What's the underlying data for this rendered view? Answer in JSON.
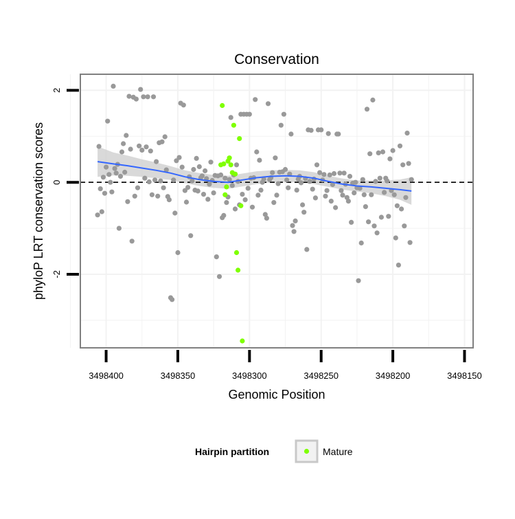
{
  "chart_data": {
    "type": "scatter",
    "title": "Conservation",
    "xlabel": "Genomic Position",
    "ylabel": "phyloP LRT conservation scores",
    "x_reversed": true,
    "xlim": [
      3498418,
      3498144
    ],
    "ylim": [
      -3.6,
      2.35
    ],
    "xticks": [
      3498400,
      3498350,
      3498300,
      3498250,
      3498200,
      3498150
    ],
    "xtick_labels": [
      "3498400",
      "3498350",
      "3498300",
      "3498250",
      "3498200",
      "3498150"
    ],
    "yticks": [
      2,
      0,
      -2
    ],
    "ytick_labels": [
      "2",
      "0",
      "-2"
    ],
    "grid": true,
    "reference_line": {
      "y": 0,
      "style": "dashed",
      "color": "#000000"
    },
    "legend": {
      "title": "Hairpin partition",
      "position": "bottom",
      "entries": [
        {
          "name": "Mature",
          "color": "#7fff00"
        }
      ]
    },
    "colors": {
      "other": "#999999",
      "mature": "#7fff00",
      "smooth": "#3366ff",
      "band": "#cccccc",
      "panel_border": "#808080",
      "grid": "#f2f2f2"
    },
    "series": [
      {
        "name": "",
        "color": "#999999",
        "points": [
          [
            3498406,
            -0.71
          ],
          [
            3498405,
            0.78
          ],
          [
            3498404,
            -0.14
          ],
          [
            3498403,
            -0.64
          ],
          [
            3498402,
            0.11
          ],
          [
            3498401,
            -0.24
          ],
          [
            3498400,
            0.33
          ],
          [
            3498399,
            1.33
          ],
          [
            3498398,
            0.17
          ],
          [
            3498397,
            0.0
          ],
          [
            3498396,
            -0.21
          ],
          [
            3498395,
            2.09
          ],
          [
            3498394,
            0.3
          ],
          [
            3498393,
            0.2
          ],
          [
            3498392,
            0.39
          ],
          [
            3498391,
            -1.0
          ],
          [
            3498390,
            0.13
          ],
          [
            3498389,
            0.66
          ],
          [
            3498388,
            0.84
          ],
          [
            3498387,
            0.22
          ],
          [
            3498386,
            1.02
          ],
          [
            3498385,
            -0.42
          ],
          [
            3498384,
            1.87
          ],
          [
            3498383,
            0.72
          ],
          [
            3498382,
            -1.28
          ],
          [
            3498381,
            1.85
          ],
          [
            3498380,
            -0.3
          ],
          [
            3498379,
            1.81
          ],
          [
            3498378,
            -0.12
          ],
          [
            3498377,
            0.79
          ],
          [
            3498376,
            2.02
          ],
          [
            3498375,
            0.7
          ],
          [
            3498374,
            1.86
          ],
          [
            3498373,
            0.09
          ],
          [
            3498372,
            0.77
          ],
          [
            3498371,
            1.86
          ],
          [
            3498370,
            0.01
          ],
          [
            3498369,
            0.68
          ],
          [
            3498368,
            -0.27
          ],
          [
            3498367,
            1.86
          ],
          [
            3498366,
            0.05
          ],
          [
            3498365,
            0.45
          ],
          [
            3498364,
            -0.3
          ],
          [
            3498363,
            0.86
          ],
          [
            3498362,
            0.03
          ],
          [
            3498361,
            0.88
          ],
          [
            3498360,
            -0.12
          ],
          [
            3498359,
            0.99
          ],
          [
            3498358,
            0.27
          ],
          [
            3498357,
            -0.31
          ],
          [
            3498356,
            -0.38
          ],
          [
            3498355,
            -2.51
          ],
          [
            3498354,
            -2.55
          ],
          [
            3498353,
            0.05
          ],
          [
            3498352,
            -0.67
          ],
          [
            3498351,
            0.47
          ],
          [
            3498350,
            -1.53
          ],
          [
            3498349,
            0.54
          ],
          [
            3498348,
            1.72
          ],
          [
            3498347,
            0.33
          ],
          [
            3498346,
            1.68
          ],
          [
            3498345,
            -0.18
          ],
          [
            3498344,
            -0.43
          ],
          [
            3498343,
            -0.11
          ],
          [
            3498342,
            0.12
          ],
          [
            3498341,
            -1.16
          ],
          [
            3498340,
            0.03
          ],
          [
            3498339,
            0.28
          ],
          [
            3498338,
            -0.17
          ],
          [
            3498337,
            0.52
          ],
          [
            3498336,
            -0.19
          ],
          [
            3498335,
            0.34
          ],
          [
            3498334,
            0.1
          ],
          [
            3498333,
            0.14
          ],
          [
            3498332,
            -0.26
          ],
          [
            3498331,
            0.25
          ],
          [
            3498330,
            0.08
          ],
          [
            3498329,
            -0.37
          ],
          [
            3498328,
            -0.04
          ],
          [
            3498327,
            0.44
          ],
          [
            3498326,
            0.04
          ],
          [
            3498325,
            -0.23
          ],
          [
            3498324,
            0.15
          ],
          [
            3498323,
            -1.62
          ],
          [
            3498322,
            0.14
          ],
          [
            3498321,
            -2.05
          ],
          [
            3498320,
            0.16
          ],
          [
            3498319,
            -0.77
          ],
          [
            3498318,
            -0.72
          ],
          [
            3498317,
            0.09
          ],
          [
            3498316,
            -0.44
          ],
          [
            3498315,
            -0.32
          ],
          [
            3498314,
            0.06
          ],
          [
            3498313,
            1.41
          ],
          [
            3498312,
            -0.07
          ],
          [
            3498311,
            0.16
          ],
          [
            3498310,
            -0.58
          ],
          [
            3498309,
            0.38
          ],
          [
            3498308,
            0.02
          ],
          [
            3498307,
            -0.49
          ],
          [
            3498306,
            1.48
          ],
          [
            3498305,
            -0.26
          ],
          [
            3498304,
            1.48
          ],
          [
            3498303,
            -0.38
          ],
          [
            3498302,
            1.48
          ],
          [
            3498301,
            -0.13
          ],
          [
            3498300,
            1.48
          ],
          [
            3498299,
            0.09
          ],
          [
            3498298,
            -0.54
          ],
          [
            3498297,
            0.1
          ],
          [
            3498296,
            1.8
          ],
          [
            3498295,
            0.66
          ],
          [
            3498294,
            -0.28
          ],
          [
            3498293,
            0.48
          ],
          [
            3498292,
            -0.17
          ],
          [
            3498291,
            0.0
          ],
          [
            3498290,
            0.07
          ],
          [
            3498289,
            -0.7
          ],
          [
            3498288,
            -0.78
          ],
          [
            3498287,
            1.71
          ],
          [
            3498286,
            0.06
          ],
          [
            3498285,
            0.1
          ],
          [
            3498284,
            0.21
          ],
          [
            3498283,
            -0.44
          ],
          [
            3498282,
            0.53
          ],
          [
            3498281,
            -0.28
          ],
          [
            3498280,
            -0.03
          ],
          [
            3498279,
            0.22
          ],
          [
            3498278,
            1.24
          ],
          [
            3498277,
            0.23
          ],
          [
            3498276,
            1.48
          ],
          [
            3498275,
            0.28
          ],
          [
            3498274,
            0.05
          ],
          [
            3498273,
            -0.12
          ],
          [
            3498272,
            0.18
          ],
          [
            3498271,
            1.05
          ],
          [
            3498270,
            -0.94
          ],
          [
            3498269,
            -1.07
          ],
          [
            3498268,
            -0.84
          ],
          [
            3498267,
            -0.17
          ],
          [
            3498266,
            0.07
          ],
          [
            3498265,
            0.13
          ],
          [
            3498264,
            -0.01
          ],
          [
            3498263,
            -0.49
          ],
          [
            3498262,
            -0.65
          ],
          [
            3498261,
            0.08
          ],
          [
            3498260,
            -1.46
          ],
          [
            3498259,
            1.14
          ],
          [
            3498258,
            0.02
          ],
          [
            3498257,
            1.13
          ],
          [
            3498256,
            -0.15
          ],
          [
            3498255,
            0.07
          ],
          [
            3498254,
            -0.34
          ],
          [
            3498253,
            0.38
          ],
          [
            3498252,
            1.14
          ],
          [
            3498251,
            0.21
          ],
          [
            3498250,
            1.14
          ],
          [
            3498249,
            0.05
          ],
          [
            3498248,
            0.17
          ],
          [
            3498247,
            -0.3
          ],
          [
            3498246,
            -0.18
          ],
          [
            3498245,
            1.06
          ],
          [
            3498244,
            0.16
          ],
          [
            3498243,
            -0.41
          ],
          [
            3498242,
            -0.05
          ],
          [
            3498241,
            0.19
          ],
          [
            3498240,
            -0.55
          ],
          [
            3498239,
            1.05
          ],
          [
            3498238,
            1.05
          ],
          [
            3498237,
            0.2
          ],
          [
            3498236,
            -0.18
          ],
          [
            3498235,
            -0.28
          ],
          [
            3498234,
            0.2
          ],
          [
            3498233,
            -0.04
          ],
          [
            3498232,
            -0.33
          ],
          [
            3498231,
            -0.41
          ],
          [
            3498230,
            0.13
          ],
          [
            3498229,
            -0.87
          ],
          [
            3498228,
            -0.02
          ],
          [
            3498227,
            -0.23
          ],
          [
            3498226,
            0.0
          ],
          [
            3498225,
            -0.12
          ],
          [
            3498224,
            -2.14
          ],
          [
            3498223,
            -0.13
          ],
          [
            3498222,
            -1.32
          ],
          [
            3498221,
            0.06
          ],
          [
            3498220,
            -0.27
          ],
          [
            3498219,
            -0.53
          ],
          [
            3498218,
            1.59
          ],
          [
            3498217,
            -0.86
          ],
          [
            3498216,
            0.62
          ],
          [
            3498215,
            -0.27
          ],
          [
            3498214,
            1.79
          ],
          [
            3498213,
            -0.95
          ],
          [
            3498212,
            0.02
          ],
          [
            3498211,
            -1.1
          ],
          [
            3498210,
            0.64
          ],
          [
            3498209,
            0.09
          ],
          [
            3498208,
            -0.76
          ],
          [
            3498207,
            0.66
          ],
          [
            3498206,
            -0.22
          ],
          [
            3498205,
            0.09
          ],
          [
            3498204,
            0.03
          ],
          [
            3498203,
            -0.74
          ],
          [
            3498202,
            0.51
          ],
          [
            3498201,
            -0.18
          ],
          [
            3498200,
            0.69
          ],
          [
            3498199,
            -0.27
          ],
          [
            3498198,
            -1.21
          ],
          [
            3498197,
            -0.51
          ],
          [
            3498196,
            -1.8
          ],
          [
            3498195,
            0.79
          ],
          [
            3498194,
            -0.58
          ],
          [
            3498193,
            0.38
          ],
          [
            3498192,
            -0.95
          ],
          [
            3498191,
            -0.33
          ],
          [
            3498190,
            1.07
          ],
          [
            3498189,
            0.41
          ],
          [
            3498188,
            -1.31
          ],
          [
            3498187,
            0.06
          ]
        ]
      },
      {
        "name": "Mature",
        "color": "#7fff00",
        "points": [
          [
            3498320,
            0.38
          ],
          [
            3498319,
            1.67
          ],
          [
            3498318,
            0.4
          ],
          [
            3498317,
            -0.27
          ],
          [
            3498316,
            -0.1
          ],
          [
            3498315,
            0.46
          ],
          [
            3498314,
            0.53
          ],
          [
            3498313,
            0.38
          ],
          [
            3498312,
            0.21
          ],
          [
            3498311,
            1.24
          ],
          [
            3498310,
            0.18
          ],
          [
            3498309,
            -1.53
          ],
          [
            3498308,
            -1.91
          ],
          [
            3498307,
            0.95
          ],
          [
            3498306,
            -0.51
          ],
          [
            3498305,
            -3.45
          ]
        ]
      }
    ],
    "smooth": {
      "x": [
        3498406,
        3498395,
        3498385,
        3498375,
        3498365,
        3498355,
        3498345,
        3498335,
        3498325,
        3498315,
        3498305,
        3498295,
        3498285,
        3498275,
        3498265,
        3498255,
        3498245,
        3498235,
        3498225,
        3498215,
        3498205,
        3498195,
        3498187
      ],
      "y": [
        0.45,
        0.4,
        0.36,
        0.31,
        0.26,
        0.2,
        0.12,
        0.06,
        0.02,
        0.0,
        0.05,
        0.1,
        0.13,
        0.14,
        0.13,
        0.09,
        0.02,
        -0.04,
        -0.08,
        -0.1,
        -0.13,
        -0.16,
        -0.19
      ],
      "lower": [
        0.12,
        0.15,
        0.14,
        0.12,
        0.09,
        0.05,
        -0.02,
        -0.08,
        -0.12,
        -0.14,
        -0.09,
        -0.04,
        0.0,
        0.01,
        0.0,
        -0.04,
        -0.1,
        -0.16,
        -0.2,
        -0.24,
        -0.3,
        -0.38,
        -0.49
      ],
      "upper": [
        0.78,
        0.65,
        0.58,
        0.5,
        0.43,
        0.35,
        0.26,
        0.2,
        0.16,
        0.14,
        0.19,
        0.24,
        0.26,
        0.27,
        0.26,
        0.22,
        0.14,
        0.08,
        0.04,
        0.04,
        0.04,
        0.06,
        0.11
      ]
    }
  }
}
